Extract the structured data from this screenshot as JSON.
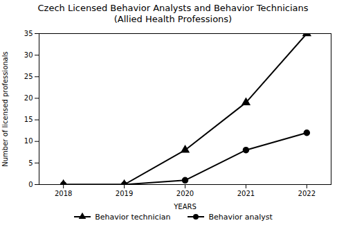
{
  "chart_data": {
    "type": "line",
    "title": "Czech Licensed Behavior Analysts and Behavior Technicians",
    "subtitle": "(Allied Health Professions)",
    "xlabel": "YEARS",
    "ylabel": "Number of licensed professionals",
    "x": [
      2018,
      2019,
      2020,
      2021,
      2022
    ],
    "series": [
      {
        "name": "Behavior technician",
        "color": "#000000",
        "marker": "triangle",
        "values": [
          0,
          0,
          8,
          19,
          35
        ]
      },
      {
        "name": "Behavior analyst",
        "color": "#000000",
        "marker": "circle",
        "values": [
          0,
          0,
          1,
          8,
          12
        ]
      }
    ],
    "xlim": [
      2017.6,
      2022.4
    ],
    "xticks": [
      2018,
      2019,
      2020,
      2021,
      2022
    ],
    "ylim": [
      0,
      35
    ],
    "yticks": [
      0,
      5,
      10,
      15,
      20,
      25,
      30,
      35
    ],
    "grid": false,
    "legend": "bottom"
  }
}
